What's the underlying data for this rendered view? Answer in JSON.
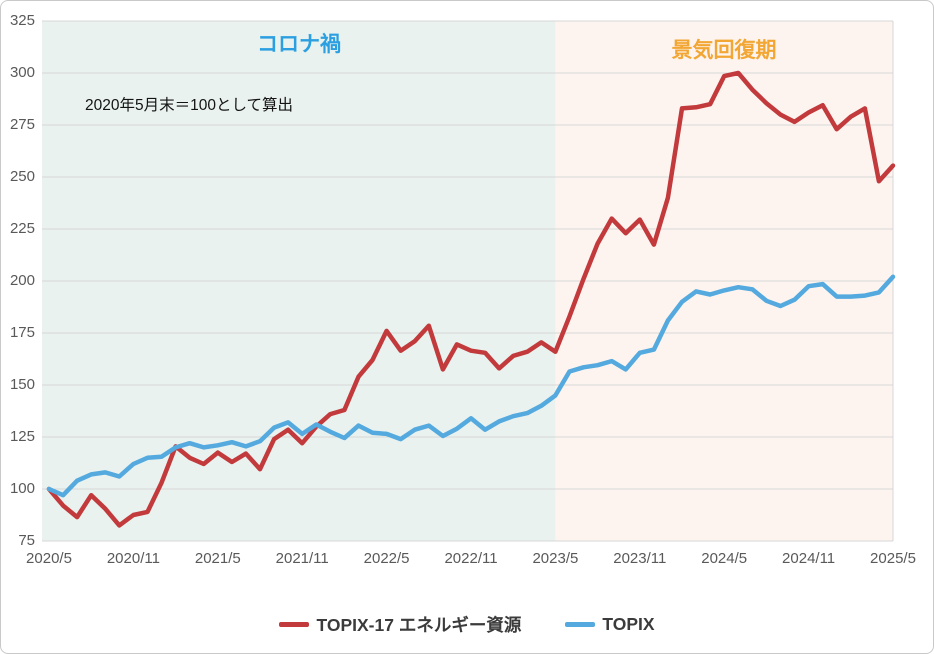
{
  "chart_data": {
    "type": "line",
    "title": "",
    "annotation": "2020年5月末＝100として算出",
    "x_tick_labels": [
      "2020/5",
      "2020/11",
      "2021/5",
      "2021/11",
      "2022/5",
      "2022/11",
      "2023/5",
      "2023/11",
      "2024/5",
      "2024/11",
      "2025/5"
    ],
    "months_per_tick": 6,
    "n_points": 61,
    "ylim": [
      75,
      325
    ],
    "ytick_step": 25,
    "grid": true,
    "legend_position": "bottom",
    "regions": [
      {
        "label": "コロナ禍",
        "label_color": "#2b9fe0",
        "fill": "#e9f2ef",
        "from_month": 0,
        "to_month": 36
      },
      {
        "label": "景気回復期",
        "label_color": "#f2a633",
        "fill": "#fdf4f0",
        "from_month": 36,
        "to_month": 60
      }
    ],
    "series": [
      {
        "name": "TOPIX-17 エネルギー資源",
        "color": "#c23a3c",
        "values": [
          100,
          92,
          86.5,
          97,
          90.5,
          82.5,
          87.5,
          89,
          103,
          120.5,
          115,
          112,
          117.5,
          113,
          117,
          109.5,
          124,
          128.5,
          122,
          130,
          136,
          138,
          154,
          162,
          176,
          166.5,
          171,
          178.5,
          157.5,
          169.5,
          166.5,
          165.5,
          158,
          164,
          166,
          170.5,
          166,
          183,
          201,
          218,
          230,
          223,
          229.5,
          217.5,
          240,
          283,
          283.5,
          285,
          298.5,
          300,
          292,
          285.5,
          280,
          276.5,
          281,
          284.5,
          273,
          279,
          283,
          248,
          255.5
        ]
      },
      {
        "name": "TOPIX",
        "color": "#54a9de",
        "values": [
          100,
          97,
          104,
          107,
          108,
          106,
          112,
          115,
          115.5,
          120,
          122,
          120,
          121,
          122.5,
          120.5,
          123,
          129.5,
          132,
          126.5,
          131,
          127.5,
          124.5,
          130.5,
          127,
          126.5,
          124,
          128.5,
          130.5,
          125.5,
          129,
          134,
          128.5,
          132.5,
          135,
          136.5,
          140,
          145,
          156.5,
          158.5,
          159.5,
          161.5,
          157.5,
          165.5,
          167,
          181,
          190,
          195,
          193.5,
          195.5,
          197,
          196,
          190.5,
          188,
          191,
          197.5,
          198.5,
          192.5,
          192.5,
          193,
          194.5,
          202
        ]
      }
    ],
    "gridline_color": "#d7d7d7",
    "tick_label_color": "#595959"
  }
}
